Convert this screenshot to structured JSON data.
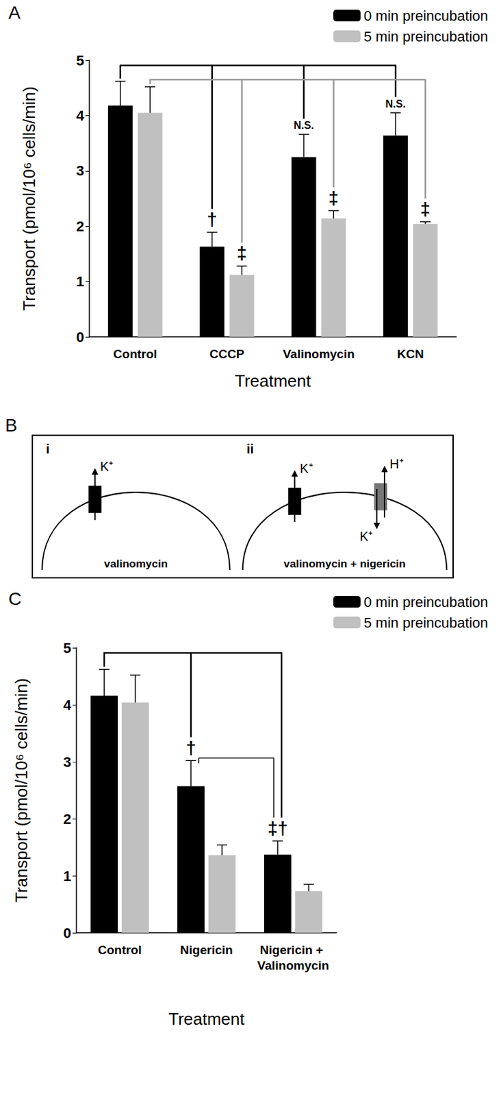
{
  "chart_data": [
    {
      "type": "bar",
      "title": "A",
      "x_label": "Treatment",
      "y_label": "Transport (pmol/10⁶ cells/min)",
      "categories": [
        "Control",
        "CCCP",
        "Valinomycin",
        "KCN"
      ],
      "series": [
        {
          "name": "0 min preincubation",
          "color": "#000000",
          "values": [
            4.18,
            1.63,
            3.25,
            3.64
          ],
          "errors": [
            0.44,
            0.26,
            0.41,
            0.41
          ]
        },
        {
          "name": "5 min preincubation",
          "color": "#c0c0c0",
          "values": [
            4.05,
            1.12,
            2.14,
            2.04
          ],
          "errors": [
            0.47,
            0.16,
            0.14,
            0.04
          ]
        }
      ],
      "ylim": [
        0,
        5
      ],
      "yticks": [
        0,
        1,
        2,
        3,
        4,
        5
      ],
      "grid": false,
      "legend": "upper right",
      "annotations": [
        {
          "series": "0 min preincubation",
          "category": "CCCP",
          "text": "†",
          "versus": [
            "Control"
          ]
        },
        {
          "series": "0 min preincubation",
          "category": "Valinomycin",
          "text": "N.S.",
          "versus": [
            "Control"
          ]
        },
        {
          "series": "0 min preincubation",
          "category": "KCN",
          "text": "N.S.",
          "versus": [
            "Control"
          ]
        },
        {
          "series": "5 min preincubation",
          "category": "CCCP",
          "text": "‡",
          "versus": [
            "Control"
          ]
        },
        {
          "series": "5 min preincubation",
          "category": "Valinomycin",
          "text": "‡",
          "versus": [
            "Control"
          ]
        },
        {
          "series": "5 min preincubation",
          "category": "KCN",
          "text": "‡",
          "versus": [
            "Control"
          ]
        }
      ]
    },
    {
      "type": "bar",
      "title": "C",
      "x_label": "Treatment",
      "y_label": "Transport (pmol/10⁶ cells/min)",
      "categories": [
        "Control",
        "Nigericin",
        "Nigericin + Valinomycin"
      ],
      "series": [
        {
          "name": "0 min preincubation",
          "color": "#000000",
          "values": [
            4.16,
            2.57,
            1.37
          ],
          "errors": [
            0.46,
            0.45,
            0.24
          ]
        },
        {
          "name": "5 min preincubation",
          "color": "#c0c0c0",
          "values": [
            4.04,
            1.36,
            0.73
          ],
          "errors": [
            0.48,
            0.18,
            0.12
          ]
        }
      ],
      "ylim": [
        0,
        5
      ],
      "yticks": [
        0,
        1,
        2,
        3,
        4,
        5
      ],
      "grid": false,
      "legend": "upper right",
      "annotations": [
        {
          "series": "0 min preincubation",
          "category": "Nigericin",
          "text": "†",
          "versus": [
            "Control"
          ]
        },
        {
          "series": "0 min preincubation",
          "category": "Nigericin + Valinomycin",
          "text": "‡†",
          "versus": [
            "Nigericin",
            "Control"
          ]
        }
      ]
    }
  ],
  "diagram": {
    "title": "B",
    "panels": [
      {
        "label": "i",
        "caption": "valinomycin",
        "carriers": [
          {
            "carrier": "valinomycin",
            "out": "K⁺"
          }
        ]
      },
      {
        "label": "ii",
        "caption": "valinomycin + nigericin",
        "carriers": [
          {
            "carrier": "valinomycin",
            "out": "K⁺"
          },
          {
            "carrier": "nigericin",
            "out": "H⁺",
            "in": "K⁺"
          }
        ]
      }
    ]
  }
}
